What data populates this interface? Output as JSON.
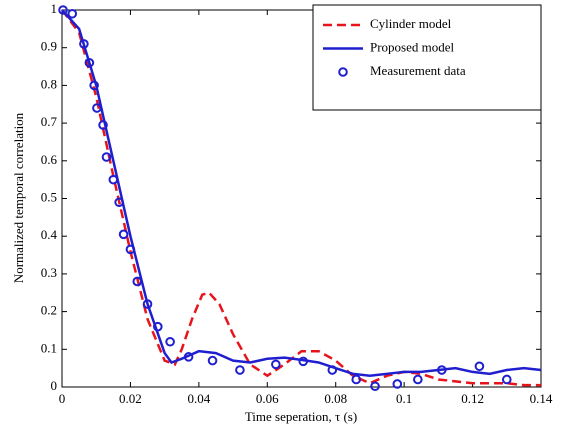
{
  "chart_data": {
    "type": "line",
    "xlabel": "Time seperation, τ (s)",
    "ylabel": "Normalized temporal correlation",
    "xlim": [
      0,
      0.14
    ],
    "ylim": [
      0,
      1
    ],
    "xticks": [
      0,
      0.02,
      0.04,
      0.06,
      0.08,
      0.1,
      0.12,
      0.14
    ],
    "yticks": [
      0,
      0.1,
      0.2,
      0.3,
      0.4,
      0.5,
      0.6,
      0.7,
      0.8,
      0.9,
      1
    ],
    "grid": false,
    "legend": "top-right",
    "series": [
      {
        "name": "Cylinder model",
        "color": "#e8141c",
        "style": "dashed",
        "x": [
          0,
          0.005,
          0.01,
          0.015,
          0.02,
          0.025,
          0.03,
          0.033,
          0.035,
          0.038,
          0.041,
          0.043,
          0.046,
          0.05,
          0.055,
          0.06,
          0.065,
          0.07,
          0.075,
          0.08,
          0.085,
          0.09,
          0.095,
          0.1,
          0.105,
          0.11,
          0.115,
          0.12,
          0.125,
          0.13,
          0.135,
          0.14
        ],
        "values": [
          1,
          0.94,
          0.77,
          0.56,
          0.36,
          0.18,
          0.07,
          0.06,
          0.1,
          0.18,
          0.245,
          0.25,
          0.22,
          0.14,
          0.06,
          0.03,
          0.06,
          0.095,
          0.095,
          0.07,
          0.03,
          0.01,
          0.03,
          0.04,
          0.035,
          0.02,
          0.015,
          0.01,
          0.01,
          0.01,
          0.005,
          0.005
        ]
      },
      {
        "name": "Proposed model",
        "color": "#1f1fd0",
        "style": "solid",
        "x": [
          0,
          0.005,
          0.01,
          0.015,
          0.02,
          0.025,
          0.03,
          0.032,
          0.035,
          0.04,
          0.045,
          0.05,
          0.055,
          0.06,
          0.065,
          0.07,
          0.075,
          0.08,
          0.085,
          0.09,
          0.095,
          0.1,
          0.105,
          0.11,
          0.115,
          0.12,
          0.125,
          0.13,
          0.135,
          0.14
        ],
        "values": [
          1,
          0.95,
          0.8,
          0.6,
          0.4,
          0.22,
          0.09,
          0.065,
          0.075,
          0.095,
          0.09,
          0.07,
          0.065,
          0.075,
          0.078,
          0.072,
          0.065,
          0.05,
          0.035,
          0.03,
          0.035,
          0.04,
          0.04,
          0.045,
          0.05,
          0.04,
          0.035,
          0.045,
          0.05,
          0.045
        ]
      },
      {
        "name": "Measurement data",
        "color": "#1f1fd0",
        "style": "markers",
        "x": [
          0.0003,
          0.003,
          0.0064,
          0.008,
          0.0094,
          0.0102,
          0.012,
          0.013,
          0.015,
          0.0167,
          0.018,
          0.02,
          0.022,
          0.025,
          0.028,
          0.0316,
          0.037,
          0.044,
          0.052,
          0.0625,
          0.0705,
          0.079,
          0.086,
          0.0915,
          0.098,
          0.104,
          0.111,
          0.122,
          0.13
        ],
        "values": [
          1,
          0.99,
          0.91,
          0.86,
          0.8,
          0.74,
          0.695,
          0.61,
          0.55,
          0.49,
          0.405,
          0.365,
          0.28,
          0.22,
          0.16,
          0.12,
          0.08,
          0.07,
          0.045,
          0.06,
          0.068,
          0.045,
          0.02,
          0.002,
          0.008,
          0.02,
          0.045,
          0.055,
          0.02
        ]
      }
    ]
  }
}
